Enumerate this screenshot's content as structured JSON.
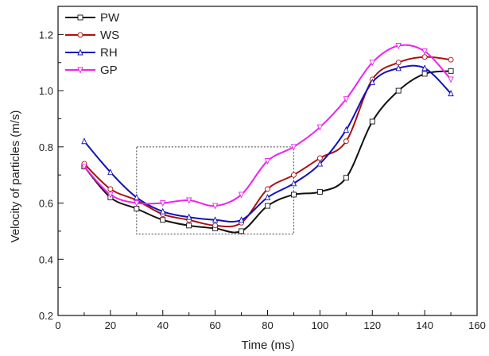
{
  "chart_data": {
    "type": "line",
    "title": "",
    "xlabel": "Time (ms)",
    "ylabel": "Velocity of particles (m/s)",
    "xlim": [
      0,
      160
    ],
    "ylim": [
      0.2,
      1.3
    ],
    "x_ticks": [
      0,
      20,
      40,
      60,
      80,
      100,
      120,
      140,
      160
    ],
    "x_tick_labels": [
      "0",
      "20",
      "40",
      "60",
      "80",
      "100",
      "120",
      "140",
      "160"
    ],
    "y_ticks": [
      0.2,
      0.4,
      0.6,
      0.8,
      1.0,
      1.2
    ],
    "y_tick_labels": [
      "0.2",
      "0.4",
      "0.6",
      "0.8",
      "1.0",
      "1.2"
    ],
    "grid": false,
    "legend_position": "top-left",
    "annotation_box": {
      "x": [
        30,
        90
      ],
      "y": [
        0.49,
        0.8
      ],
      "style": "dotted"
    },
    "series": [
      {
        "name": "PW",
        "color": "#111111",
        "marker": "square",
        "x": [
          10,
          20,
          30,
          40,
          50,
          60,
          70,
          80,
          90,
          100,
          110,
          120,
          130,
          140,
          150
        ],
        "y": [
          0.73,
          0.62,
          0.58,
          0.54,
          0.52,
          0.51,
          0.5,
          0.59,
          0.63,
          0.64,
          0.69,
          0.89,
          1.0,
          1.06,
          1.07
        ]
      },
      {
        "name": "WS",
        "color": "#aa1111",
        "marker": "circle",
        "x": [
          10,
          20,
          30,
          40,
          50,
          60,
          70,
          80,
          90,
          100,
          110,
          120,
          130,
          140,
          150
        ],
        "y": [
          0.74,
          0.65,
          0.61,
          0.56,
          0.54,
          0.52,
          0.53,
          0.65,
          0.7,
          0.76,
          0.82,
          1.04,
          1.1,
          1.12,
          1.11
        ]
      },
      {
        "name": "RH",
        "color": "#1111bb",
        "marker": "triangle",
        "x": [
          10,
          20,
          30,
          40,
          50,
          60,
          70,
          80,
          90,
          100,
          110,
          120,
          130,
          140,
          150
        ],
        "y": [
          0.82,
          0.71,
          0.62,
          0.57,
          0.55,
          0.54,
          0.54,
          0.62,
          0.67,
          0.74,
          0.86,
          1.03,
          1.08,
          1.08,
          0.99
        ]
      },
      {
        "name": "GP",
        "color": "#ee22ee",
        "marker": "inverted-triangle",
        "x": [
          10,
          20,
          30,
          40,
          50,
          60,
          70,
          80,
          90,
          100,
          110,
          120,
          130,
          140,
          150
        ],
        "y": [
          0.73,
          0.63,
          0.6,
          0.6,
          0.61,
          0.59,
          0.63,
          0.75,
          0.8,
          0.87,
          0.97,
          1.1,
          1.16,
          1.14,
          1.04
        ]
      }
    ]
  }
}
